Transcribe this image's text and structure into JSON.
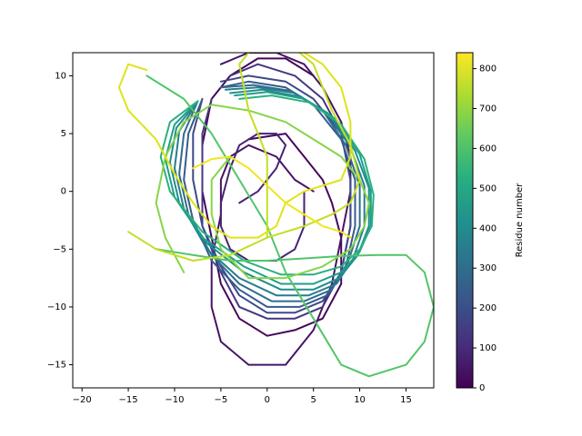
{
  "chart_data": {
    "type": "line",
    "title": "",
    "xlabel": "",
    "ylabel": "",
    "xlim": [
      -21,
      18
    ],
    "ylim": [
      -17,
      12
    ],
    "xticks": [
      -20,
      -15,
      -10,
      -5,
      0,
      5,
      10,
      15
    ],
    "yticks": [
      -15,
      -10,
      -5,
      0,
      5,
      10
    ],
    "grid": false,
    "colormap": "viridis",
    "colorbar": {
      "label": "Residue number",
      "range": [
        0,
        840
      ],
      "ticks": [
        0,
        100,
        200,
        300,
        400,
        500,
        600,
        700,
        800
      ]
    },
    "series": [
      {
        "residue": 10,
        "color": "#46075a",
        "points": [
          [
            -2,
            4.5
          ],
          [
            2,
            5
          ],
          [
            4,
            3
          ],
          [
            6,
            1
          ],
          [
            7,
            -1
          ],
          [
            8,
            -4
          ],
          [
            8,
            -8
          ],
          [
            6,
            -11
          ],
          [
            3,
            -12
          ],
          [
            0,
            -12.5
          ],
          [
            -3,
            -11
          ],
          [
            -5,
            -8
          ],
          [
            -6,
            -4
          ],
          [
            -7,
            0
          ],
          [
            -7,
            4
          ],
          [
            -6,
            8
          ],
          [
            -4,
            10
          ],
          [
            -1,
            11.5
          ],
          [
            2,
            11.5
          ],
          [
            5,
            10
          ]
        ]
      },
      {
        "residue": 40,
        "color": "#471365",
        "points": [
          [
            -5,
            11
          ],
          [
            -2,
            12
          ],
          [
            1,
            12
          ],
          [
            4,
            11
          ],
          [
            6,
            9
          ],
          [
            8,
            6
          ],
          [
            9,
            3
          ],
          [
            9,
            0
          ],
          [
            8,
            -4
          ],
          [
            7,
            -8
          ],
          [
            5,
            -12
          ],
          [
            2,
            -15
          ],
          [
            -2,
            -15
          ],
          [
            -5,
            -13
          ],
          [
            -6,
            -10
          ],
          [
            -6,
            -6
          ],
          [
            -5,
            -2
          ],
          [
            -5,
            1
          ],
          [
            -4,
            3
          ],
          [
            -2,
            4
          ],
          [
            1,
            3
          ],
          [
            3,
            1
          ],
          [
            5,
            0
          ]
        ]
      },
      {
        "residue": 80,
        "color": "#482374",
        "points": [
          [
            -3,
            -1
          ],
          [
            -1,
            0
          ],
          [
            1,
            2
          ],
          [
            2,
            4
          ],
          [
            1,
            5
          ],
          [
            -1,
            5
          ],
          [
            -3,
            4
          ],
          [
            -4,
            2
          ],
          [
            -5,
            -1
          ],
          [
            -5,
            -3
          ],
          [
            -4,
            -5
          ],
          [
            -2,
            -6
          ],
          [
            1,
            -6
          ],
          [
            3,
            -5
          ],
          [
            4,
            -3
          ],
          [
            4,
            0
          ]
        ]
      },
      {
        "residue": 140,
        "color": "#453781",
        "points": [
          [
            -4,
            10
          ],
          [
            -1,
            11
          ],
          [
            3,
            10
          ],
          [
            6,
            8
          ],
          [
            8,
            5
          ],
          [
            9,
            1
          ],
          [
            9,
            -3
          ],
          [
            8,
            -7
          ],
          [
            6,
            -10
          ],
          [
            3,
            -11
          ],
          [
            0,
            -11
          ],
          [
            -3,
            -10
          ],
          [
            -5,
            -7
          ],
          [
            -7,
            -3
          ],
          [
            -7,
            1
          ],
          [
            -7,
            5
          ],
          [
            -6,
            8
          ]
        ]
      },
      {
        "residue": 200,
        "color": "#3e4989",
        "points": [
          [
            -5,
            9.5
          ],
          [
            -2,
            10
          ],
          [
            2,
            9.5
          ],
          [
            5,
            8
          ],
          [
            8,
            5
          ],
          [
            9,
            1
          ],
          [
            9,
            -3
          ],
          [
            8,
            -7
          ],
          [
            6,
            -9.5
          ],
          [
            3,
            -10.5
          ],
          [
            0,
            -10.5
          ],
          [
            -3,
            -9
          ],
          [
            -5,
            -6.5
          ],
          [
            -7,
            -3
          ],
          [
            -8,
            1
          ],
          [
            -8,
            5
          ],
          [
            -7,
            8
          ]
        ]
      },
      {
        "residue": 260,
        "color": "#375b8d",
        "points": [
          [
            -5,
            9
          ],
          [
            -2,
            9.5
          ],
          [
            2,
            9
          ],
          [
            5,
            7.5
          ],
          [
            8,
            4.5
          ],
          [
            9.5,
            1
          ],
          [
            9.5,
            -3
          ],
          [
            8.5,
            -6.5
          ],
          [
            6.5,
            -9
          ],
          [
            3.5,
            -10
          ],
          [
            0,
            -10
          ],
          [
            -3,
            -8.5
          ],
          [
            -6,
            -6
          ],
          [
            -8,
            -2.5
          ],
          [
            -9,
            1
          ],
          [
            -8.5,
            5
          ],
          [
            -7,
            8
          ]
        ]
      },
      {
        "residue": 320,
        "color": "#2f6c8e",
        "points": [
          [
            -5,
            9
          ],
          [
            -1.5,
            9.2
          ],
          [
            2.5,
            8.7
          ],
          [
            6,
            7
          ],
          [
            8.5,
            4
          ],
          [
            10,
            0.5
          ],
          [
            10,
            -3
          ],
          [
            8.8,
            -6
          ],
          [
            7,
            -8.5
          ],
          [
            4,
            -9.5
          ],
          [
            0.5,
            -9.5
          ],
          [
            -3,
            -8
          ],
          [
            -6,
            -5.5
          ],
          [
            -8.5,
            -2
          ],
          [
            -9.5,
            1.5
          ],
          [
            -9,
            5
          ],
          [
            -7.5,
            7.8
          ]
        ]
      },
      {
        "residue": 380,
        "color": "#287c8e",
        "points": [
          [
            -4.5,
            8.8
          ],
          [
            -1,
            9
          ],
          [
            3,
            8.5
          ],
          [
            6.5,
            6.8
          ],
          [
            9,
            3.8
          ],
          [
            10.5,
            0.5
          ],
          [
            10.5,
            -3
          ],
          [
            9.3,
            -5.8
          ],
          [
            7.5,
            -8
          ],
          [
            4.5,
            -9
          ],
          [
            1,
            -9
          ],
          [
            -3,
            -7.5
          ],
          [
            -6.5,
            -5
          ],
          [
            -9,
            -1.5
          ],
          [
            -10,
            2
          ],
          [
            -9.5,
            5.2
          ],
          [
            -7.5,
            7.8
          ]
        ]
      },
      {
        "residue": 440,
        "color": "#218e8d",
        "points": [
          [
            -4,
            8.5
          ],
          [
            -0.5,
            8.8
          ],
          [
            3.5,
            8.2
          ],
          [
            7,
            6.5
          ],
          [
            9.5,
            3.5
          ],
          [
            11,
            0.3
          ],
          [
            11,
            -3
          ],
          [
            9.8,
            -5.5
          ],
          [
            7.8,
            -7.5
          ],
          [
            5,
            -8.5
          ],
          [
            1.5,
            -8.5
          ],
          [
            -2.5,
            -7
          ],
          [
            -6.5,
            -4.5
          ],
          [
            -9.5,
            -1
          ],
          [
            -10.5,
            2.5
          ],
          [
            -9.8,
            5.5
          ],
          [
            -7.5,
            7.8
          ]
        ]
      },
      {
        "residue": 500,
        "color": "#1f9e89",
        "points": [
          [
            -3.5,
            8.3
          ],
          [
            0,
            8.6
          ],
          [
            4,
            8
          ],
          [
            7.5,
            6.2
          ],
          [
            10,
            3.2
          ],
          [
            11.2,
            0
          ],
          [
            11.2,
            -3
          ],
          [
            10,
            -5.2
          ],
          [
            8,
            -7
          ],
          [
            5,
            -8
          ],
          [
            1.5,
            -8
          ],
          [
            -2.5,
            -6.5
          ],
          [
            -7,
            -4
          ],
          [
            -10,
            -0.5
          ],
          [
            -11,
            2.8
          ],
          [
            -10,
            5.8
          ],
          [
            -7.5,
            7.8
          ]
        ]
      },
      {
        "residue": 560,
        "color": "#2ab07f",
        "points": [
          [
            -3,
            8
          ],
          [
            0.5,
            8.3
          ],
          [
            4.5,
            7.7
          ],
          [
            8,
            5.8
          ],
          [
            10.5,
            2.8
          ],
          [
            11.5,
            -0.3
          ],
          [
            11.3,
            -3
          ],
          [
            10,
            -5
          ],
          [
            8,
            -6.5
          ],
          [
            5,
            -7.2
          ],
          [
            1.5,
            -7.2
          ],
          [
            -2.5,
            -6
          ],
          [
            -7,
            -3.5
          ],
          [
            -10.5,
            0
          ],
          [
            -11.5,
            3
          ],
          [
            -10.5,
            6
          ],
          [
            -7.5,
            7.8
          ]
        ]
      },
      {
        "residue": 620,
        "color": "#52c569",
        "points": [
          [
            -12,
            -5
          ],
          [
            -8,
            -5.5
          ],
          [
            -4,
            -6
          ],
          [
            0,
            -6
          ],
          [
            4,
            -5.8
          ],
          [
            8,
            -5.6
          ],
          [
            12,
            -5.5
          ],
          [
            15,
            -5.5
          ],
          [
            17,
            -7
          ],
          [
            18,
            -10
          ],
          [
            17,
            -13
          ],
          [
            15,
            -15
          ],
          [
            11,
            -16
          ],
          [
            8,
            -15
          ],
          [
            5,
            -11
          ],
          [
            2,
            -7
          ],
          [
            0,
            -3
          ],
          [
            -3,
            1
          ],
          [
            -6,
            5
          ],
          [
            -9,
            8
          ],
          [
            -13,
            10
          ]
        ]
      },
      {
        "residue": 680,
        "color": "#86d549",
        "points": [
          [
            -9,
            -7
          ],
          [
            -11,
            -4
          ],
          [
            -12,
            -1
          ],
          [
            -11,
            3
          ],
          [
            -9,
            6
          ],
          [
            -6,
            7.5
          ],
          [
            -2,
            7
          ],
          [
            2,
            6
          ],
          [
            5,
            4.5
          ],
          [
            8,
            3
          ],
          [
            10,
            1
          ],
          [
            11,
            -1
          ],
          [
            10.5,
            -3
          ],
          [
            9,
            -5
          ],
          [
            6,
            -6.5
          ],
          [
            2,
            -7.5
          ],
          [
            -2,
            -7.5
          ],
          [
            -5,
            -5
          ],
          [
            -6,
            -2
          ],
          [
            -6,
            1
          ],
          [
            -4,
            3
          ]
        ]
      },
      {
        "residue": 740,
        "color": "#c2df23",
        "points": [
          [
            -15,
            -3.5
          ],
          [
            -12,
            -5
          ],
          [
            -8,
            -6
          ],
          [
            -4,
            -5.5
          ],
          [
            0,
            -4
          ],
          [
            4,
            -3
          ],
          [
            7,
            -2
          ],
          [
            9,
            -1
          ],
          [
            10,
            1
          ],
          [
            9,
            4
          ],
          [
            7,
            7
          ],
          [
            5,
            11
          ],
          [
            2,
            13
          ],
          [
            -1,
            13
          ],
          [
            -3,
            11
          ],
          [
            -2,
            7
          ],
          [
            0,
            3
          ],
          [
            0,
            -1
          ],
          [
            0,
            -4
          ]
        ]
      },
      {
        "residue": 800,
        "color": "#dfe318",
        "points": [
          [
            -13,
            10.5
          ],
          [
            -15,
            11
          ],
          [
            -16,
            9
          ],
          [
            -15,
            7
          ],
          [
            -12,
            4.5
          ],
          [
            -10,
            1.5
          ],
          [
            -8,
            -1
          ],
          [
            -6,
            -3
          ],
          [
            -4,
            -4
          ],
          [
            -1,
            -4
          ],
          [
            1,
            -3
          ],
          [
            2,
            -1
          ],
          [
            4,
            0
          ],
          [
            6,
            0.5
          ],
          [
            8,
            1
          ],
          [
            9,
            3
          ],
          [
            9,
            6
          ],
          [
            8,
            9
          ],
          [
            6,
            11
          ],
          [
            4,
            12
          ]
        ]
      },
      {
        "residue": 840,
        "color": "#f2e51d",
        "points": [
          [
            -8,
            2
          ],
          [
            -6,
            2.8
          ],
          [
            -4,
            3
          ],
          [
            -2,
            2
          ],
          [
            0,
            0.5
          ],
          [
            2,
            -1
          ],
          [
            4,
            -2
          ],
          [
            6,
            -3
          ],
          [
            8,
            -3.5
          ],
          [
            9,
            -4
          ]
        ]
      }
    ]
  }
}
